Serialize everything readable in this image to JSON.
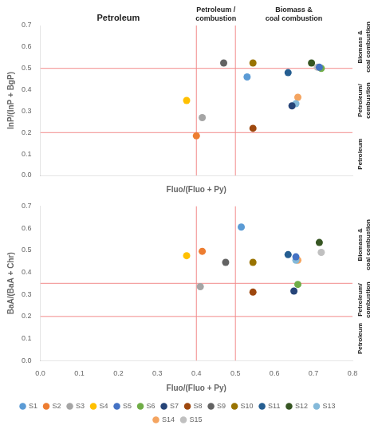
{
  "chart_data": [
    {
      "type": "scatter",
      "xlabel": "Fluo/(Fluo + Py)",
      "ylabel": "InP/(InP + BgP)",
      "xlim": [
        0,
        0.8
      ],
      "ylim": [
        0,
        0.7
      ],
      "xticks": [
        {
          "value": 0,
          "label": "0.0"
        },
        0.1,
        0.2,
        0.3,
        0.4,
        0.5,
        0.6,
        0.7,
        0.8
      ],
      "yticks": [
        {
          "value": 0,
          "label": "0.0"
        },
        0.1,
        0.2,
        0.3,
        0.4,
        0.5,
        0.6,
        0.7
      ],
      "grid": false,
      "tick_labels": "y",
      "series": [
        {
          "name": "S1",
          "color": "#5b9bd5",
          "x": [
            0.53
          ],
          "values": [
            0.46
          ]
        },
        {
          "name": "S2",
          "color": "#ed7d31",
          "x": [
            0.4
          ],
          "values": [
            0.185
          ]
        },
        {
          "name": "S3",
          "color": "#a5a5a5",
          "x": [
            0.415
          ],
          "values": [
            0.27
          ]
        },
        {
          "name": "S4",
          "color": "#ffc000",
          "x": [
            0.375
          ],
          "values": [
            0.35
          ]
        },
        {
          "name": "S5",
          "color": "#4472c4",
          "x": [
            0.715
          ],
          "values": [
            0.505
          ]
        },
        {
          "name": "S6",
          "color": "#70ad47",
          "x": [
            0.72
          ],
          "values": [
            0.5
          ]
        },
        {
          "name": "S7",
          "color": "#264478",
          "x": [
            0.645
          ],
          "values": [
            0.325
          ]
        },
        {
          "name": "S8",
          "color": "#9e480e",
          "x": [
            0.545
          ],
          "values": [
            0.22
          ]
        },
        {
          "name": "S9",
          "color": "#636363",
          "x": [
            0.47
          ],
          "values": [
            0.525
          ]
        },
        {
          "name": "S10",
          "color": "#997300",
          "x": [
            0.545
          ],
          "values": [
            0.525
          ]
        },
        {
          "name": "S11",
          "color": "#255e91",
          "x": [
            0.635
          ],
          "values": [
            0.48
          ]
        },
        {
          "name": "S12",
          "color": "#375623",
          "x": [
            0.695
          ],
          "values": [
            0.525
          ]
        },
        {
          "name": "S13",
          "color": "#84b9d9",
          "x": [
            0.655
          ],
          "values": [
            0.335
          ]
        },
        {
          "name": "S14",
          "color": "#f4a460",
          "x": [
            0.66
          ],
          "values": [
            0.365
          ]
        },
        {
          "name": "S15",
          "color": "#c0c0c0",
          "x": [
            0.71
          ],
          "values": [
            0.505
          ]
        }
      ],
      "reference_lines": {
        "x": [
          0.4,
          0.5
        ],
        "y": [
          0.2,
          0.5
        ],
        "color": "#f28b8b"
      },
      "annotations": [
        {
          "text": "Petroleum",
          "x": 0.2
        },
        {
          "text": "Petroleum /\ncombustion",
          "x": 0.45
        },
        {
          "text": "Biomass &\ncoal combustion",
          "x": 0.65
        },
        {
          "text": "Biomass &\ncoal combustion",
          "y": [
            0.5,
            0.7
          ]
        },
        {
          "text": "Petroleum/\ncombustion",
          "y": [
            0.2,
            0.5
          ]
        },
        {
          "text": "Petroleum",
          "y": [
            0.0,
            0.2
          ]
        }
      ]
    },
    {
      "type": "scatter",
      "xlabel": "Fluo/(Fluo + Py)",
      "ylabel": "BaA/(BaA + Chr)",
      "xlim": [
        0,
        0.8
      ],
      "ylim": [
        0,
        0.7
      ],
      "xticks": [
        {
          "value": 0,
          "label": "0.0"
        },
        0.1,
        0.2,
        0.3,
        0.4,
        0.5,
        0.6,
        0.7,
        0.8
      ],
      "yticks": [
        {
          "value": 0,
          "label": "0.0"
        },
        0.1,
        0.2,
        0.3,
        0.4,
        0.5,
        0.6,
        0.7
      ],
      "grid": false,
      "legend": "bottom",
      "series": [
        {
          "name": "S1",
          "color": "#5b9bd5",
          "x": [
            0.515
          ],
          "values": [
            0.605
          ]
        },
        {
          "name": "S2",
          "color": "#ed7d31",
          "x": [
            0.415
          ],
          "values": [
            0.495
          ]
        },
        {
          "name": "S3",
          "color": "#a5a5a5",
          "x": [
            0.41
          ],
          "values": [
            0.335
          ]
        },
        {
          "name": "S4",
          "color": "#ffc000",
          "x": [
            0.375
          ],
          "values": [
            0.475
          ]
        },
        {
          "name": "S5",
          "color": "#4472c4",
          "x": [
            0.655
          ],
          "values": [
            0.47
          ]
        },
        {
          "name": "S6",
          "color": "#70ad47",
          "x": [
            0.66
          ],
          "values": [
            0.345
          ]
        },
        {
          "name": "S7",
          "color": "#264478",
          "x": [
            0.65
          ],
          "values": [
            0.315
          ]
        },
        {
          "name": "S8",
          "color": "#9e480e",
          "x": [
            0.545
          ],
          "values": [
            0.31
          ]
        },
        {
          "name": "S9",
          "color": "#636363",
          "x": [
            0.475
          ],
          "values": [
            0.445
          ]
        },
        {
          "name": "S10",
          "color": "#997300",
          "x": [
            0.545
          ],
          "values": [
            0.445
          ]
        },
        {
          "name": "S11",
          "color": "#255e91",
          "x": [
            0.635
          ],
          "values": [
            0.48
          ]
        },
        {
          "name": "S12",
          "color": "#375623",
          "x": [
            0.715
          ],
          "values": [
            0.535
          ]
        },
        {
          "name": "S13",
          "color": "#84b9d9",
          "x": [
            0.655
          ],
          "values": [
            0.455
          ]
        },
        {
          "name": "S14",
          "color": "#f4a460",
          "x": [
            0.66
          ],
          "values": [
            0.455
          ]
        },
        {
          "name": "S15",
          "color": "#c0c0c0",
          "x": [
            0.72
          ],
          "values": [
            0.49
          ]
        }
      ],
      "reference_lines": {
        "x": [
          0.4,
          0.5
        ],
        "y": [
          0.2,
          0.35
        ],
        "color": "#f28b8b"
      },
      "annotations": [
        {
          "text": "Biomass &\ncoal combustion",
          "y": [
            0.35,
            0.7
          ]
        },
        {
          "text": "Petroleum/\ncombustion",
          "y": [
            0.2,
            0.35
          ]
        },
        {
          "text": "Petroleum",
          "y": [
            0.0,
            0.2
          ]
        }
      ]
    }
  ]
}
